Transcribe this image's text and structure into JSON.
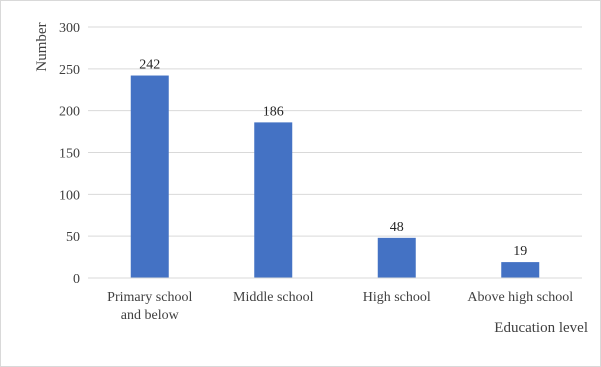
{
  "chart_data": {
    "type": "bar",
    "title": "",
    "ylabel": "Number",
    "xlabel": "Education level",
    "ylim": [
      0,
      300
    ],
    "yticks": [
      0,
      50,
      100,
      150,
      200,
      250,
      300
    ],
    "grid": true,
    "legend": "none",
    "categories": [
      [
        "Primary school",
        "and below"
      ],
      [
        "Middle school"
      ],
      [
        "High school"
      ],
      [
        "Above high school"
      ]
    ],
    "values": [
      242,
      186,
      48,
      19
    ],
    "data_labels": [
      "242",
      "186",
      "48",
      "19"
    ],
    "bar_color": "#4472c4",
    "gridline_color": "#d9d9d9"
  }
}
